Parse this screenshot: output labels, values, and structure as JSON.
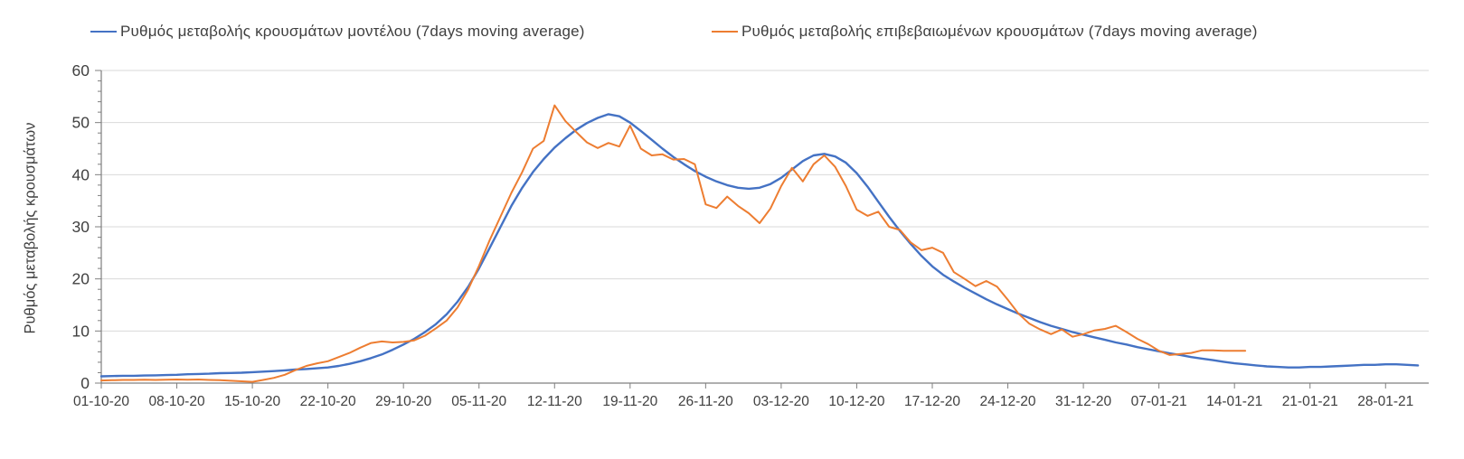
{
  "legend": {
    "model_label": "Ρυθμός μεταβολής κρουσμάτων μοντέλου (7days moving average)",
    "confirmed_label": "Ρυθμός μεταβολής επιβεβαιωμένων κρουσμάτων (7days moving average)"
  },
  "colors": {
    "model": "#4472C4",
    "confirmed": "#ED7D31",
    "grid": "#D9D9D9",
    "axis": "#7F7F7F",
    "text": "#404040"
  },
  "chart_data": {
    "type": "line",
    "title": "",
    "xlabel": "",
    "ylabel": "Ρυθμός μεταβολής κρουσμάτων",
    "ylim": [
      0,
      60
    ],
    "y_ticks": [
      0,
      10,
      20,
      30,
      40,
      50,
      60
    ],
    "y_minor_tick_step": 2,
    "grid": "horizontal",
    "legend_position": "top",
    "x_tick_labels": [
      "01-10-20",
      "08-10-20",
      "15-10-20",
      "22-10-20",
      "29-10-20",
      "05-11-20",
      "12-11-20",
      "19-11-20",
      "26-11-20",
      "03-12-20",
      "10-12-20",
      "17-12-20",
      "24-12-20",
      "31-12-20",
      "07-01-21",
      "14-01-21",
      "21-01-21",
      "28-01-21"
    ],
    "x_tick_interval_days": 7,
    "x_range_days": [
      0,
      123
    ],
    "series": [
      {
        "name": "Ρυθμός μεταβολής κρουσμάτων μοντέλου (7days moving average)",
        "color": "#4472C4",
        "width": 2.4,
        "start_day": 0,
        "values": [
          1.3,
          1.35,
          1.4,
          1.4,
          1.45,
          1.5,
          1.55,
          1.6,
          1.7,
          1.75,
          1.8,
          1.9,
          1.95,
          2.0,
          2.1,
          2.2,
          2.3,
          2.45,
          2.6,
          2.7,
          2.85,
          3.0,
          3.3,
          3.7,
          4.2,
          4.8,
          5.5,
          6.4,
          7.4,
          8.5,
          9.8,
          11.3,
          13.2,
          15.6,
          18.5,
          22.0,
          26.0,
          30.0,
          34.0,
          37.5,
          40.5,
          43.0,
          45.2,
          47.0,
          48.6,
          49.9,
          50.9,
          51.6,
          51.2,
          50.0,
          48.4,
          46.7,
          45.0,
          43.4,
          42.0,
          40.7,
          39.6,
          38.7,
          38.0,
          37.5,
          37.3,
          37.5,
          38.2,
          39.4,
          41.0,
          42.6,
          43.7,
          44.0,
          43.5,
          42.3,
          40.3,
          37.7,
          34.8,
          31.9,
          29.2,
          26.7,
          24.4,
          22.4,
          20.8,
          19.5,
          18.3,
          17.2,
          16.1,
          15.1,
          14.2,
          13.3,
          12.5,
          11.7,
          11.0,
          10.4,
          9.8,
          9.3,
          8.8,
          8.3,
          7.8,
          7.4,
          6.9,
          6.5,
          6.1,
          5.7,
          5.4,
          5.0,
          4.7,
          4.4,
          4.1,
          3.8,
          3.6,
          3.4,
          3.2,
          3.1,
          3.0,
          3.0,
          3.1,
          3.1,
          3.2,
          3.3,
          3.4,
          3.5,
          3.5,
          3.6,
          3.6,
          3.5,
          3.4
        ]
      },
      {
        "name": "Ρυθμός μεταβολής επιβεβαιωμένων κρουσμάτων (7days moving average)",
        "color": "#ED7D31",
        "width": 2.0,
        "start_day": 0,
        "values": [
          0.5,
          0.55,
          0.6,
          0.6,
          0.65,
          0.6,
          0.65,
          0.7,
          0.65,
          0.7,
          0.6,
          0.55,
          0.45,
          0.35,
          0.25,
          0.6,
          1.0,
          1.6,
          2.5,
          3.3,
          3.8,
          4.2,
          5.0,
          5.8,
          6.8,
          7.7,
          8.0,
          7.8,
          7.9,
          8.2,
          9.1,
          10.5,
          12.0,
          14.5,
          18.0,
          22.5,
          27.5,
          32.0,
          36.5,
          40.5,
          45.0,
          46.5,
          53.3,
          50.3,
          48.2,
          46.2,
          45.1,
          46.1,
          45.4,
          49.4,
          45.0,
          43.7,
          43.9,
          42.9,
          43.0,
          42.0,
          34.3,
          33.6,
          35.8,
          34.0,
          32.6,
          30.7,
          33.5,
          37.8,
          41.3,
          38.7,
          42.0,
          43.7,
          41.5,
          37.8,
          33.3,
          32.1,
          32.9,
          30.0,
          29.4,
          27.0,
          25.5,
          26.0,
          25.0,
          21.3,
          20.0,
          18.6,
          19.6,
          18.5,
          16.0,
          13.3,
          11.4,
          10.3,
          9.4,
          10.3,
          8.9,
          9.4,
          10.1,
          10.4,
          11.0,
          9.8,
          8.5,
          7.5,
          6.2,
          5.4,
          5.6,
          5.8,
          6.3,
          6.3,
          6.2,
          6.2,
          6.2
        ]
      }
    ]
  }
}
